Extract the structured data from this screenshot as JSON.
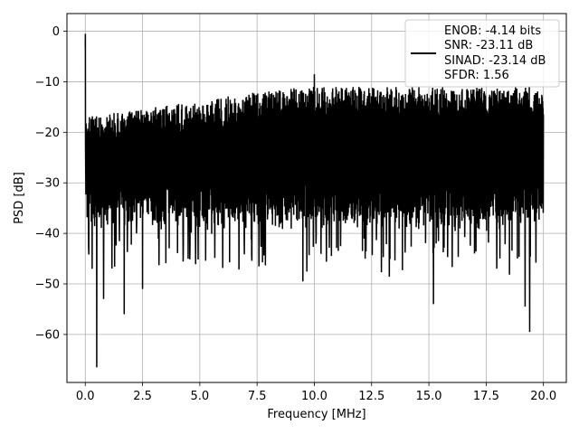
{
  "chart_data": {
    "type": "line",
    "xlabel": "Frequency [MHz]",
    "ylabel": "PSD [dB]",
    "xlim": [
      -0.8,
      21.0
    ],
    "ylim": [
      -69.5,
      3.5
    ],
    "x_ticks": [
      0.0,
      2.5,
      5.0,
      7.5,
      10.0,
      12.5,
      15.0,
      17.5,
      20.0
    ],
    "x_tick_labels": [
      "0.0",
      "2.5",
      "5.0",
      "7.5",
      "10.0",
      "12.5",
      "15.0",
      "17.5",
      "20.0"
    ],
    "y_ticks": [
      0,
      -10,
      -20,
      -30,
      -40,
      -50,
      -60
    ],
    "y_tick_labels": [
      "0",
      "−10",
      "−20",
      "−30",
      "−40",
      "−50",
      "−60"
    ],
    "grid": true,
    "legend_position": "top-right",
    "series": [
      {
        "name": "ENOB: -4.14 bits\nSNR: -23.11 dB\nSINAD: -23.14 dB\nSFDR: 1.56",
        "color": "#000000",
        "x_range": [
          0.0,
          20.0
        ],
        "description_values": {
          "dc_peak": -0.5,
          "upper_envelope_start": -17,
          "upper_envelope_end": -11,
          "lower_envelope_typical": -38,
          "notable_minima": [
            {
              "x": 0.5,
              "y": -66.5
            },
            {
              "x": 0.3,
              "y": -47
            },
            {
              "x": 0.8,
              "y": -53
            },
            {
              "x": 1.7,
              "y": -56
            },
            {
              "x": 2.5,
              "y": -51
            },
            {
              "x": 9.5,
              "y": -49.5
            },
            {
              "x": 15.2,
              "y": -54
            },
            {
              "x": 19.2,
              "y": -54.5
            },
            {
              "x": 19.4,
              "y": -59.5
            }
          ],
          "notable_maxima": [
            {
              "x": 10.0,
              "y": -8.5
            }
          ]
        }
      }
    ],
    "legend_lines": [
      "ENOB: -4.14 bits",
      "SNR: -23.11 dB",
      "SINAD: -23.14 dB",
      "SFDR: 1.56"
    ]
  }
}
